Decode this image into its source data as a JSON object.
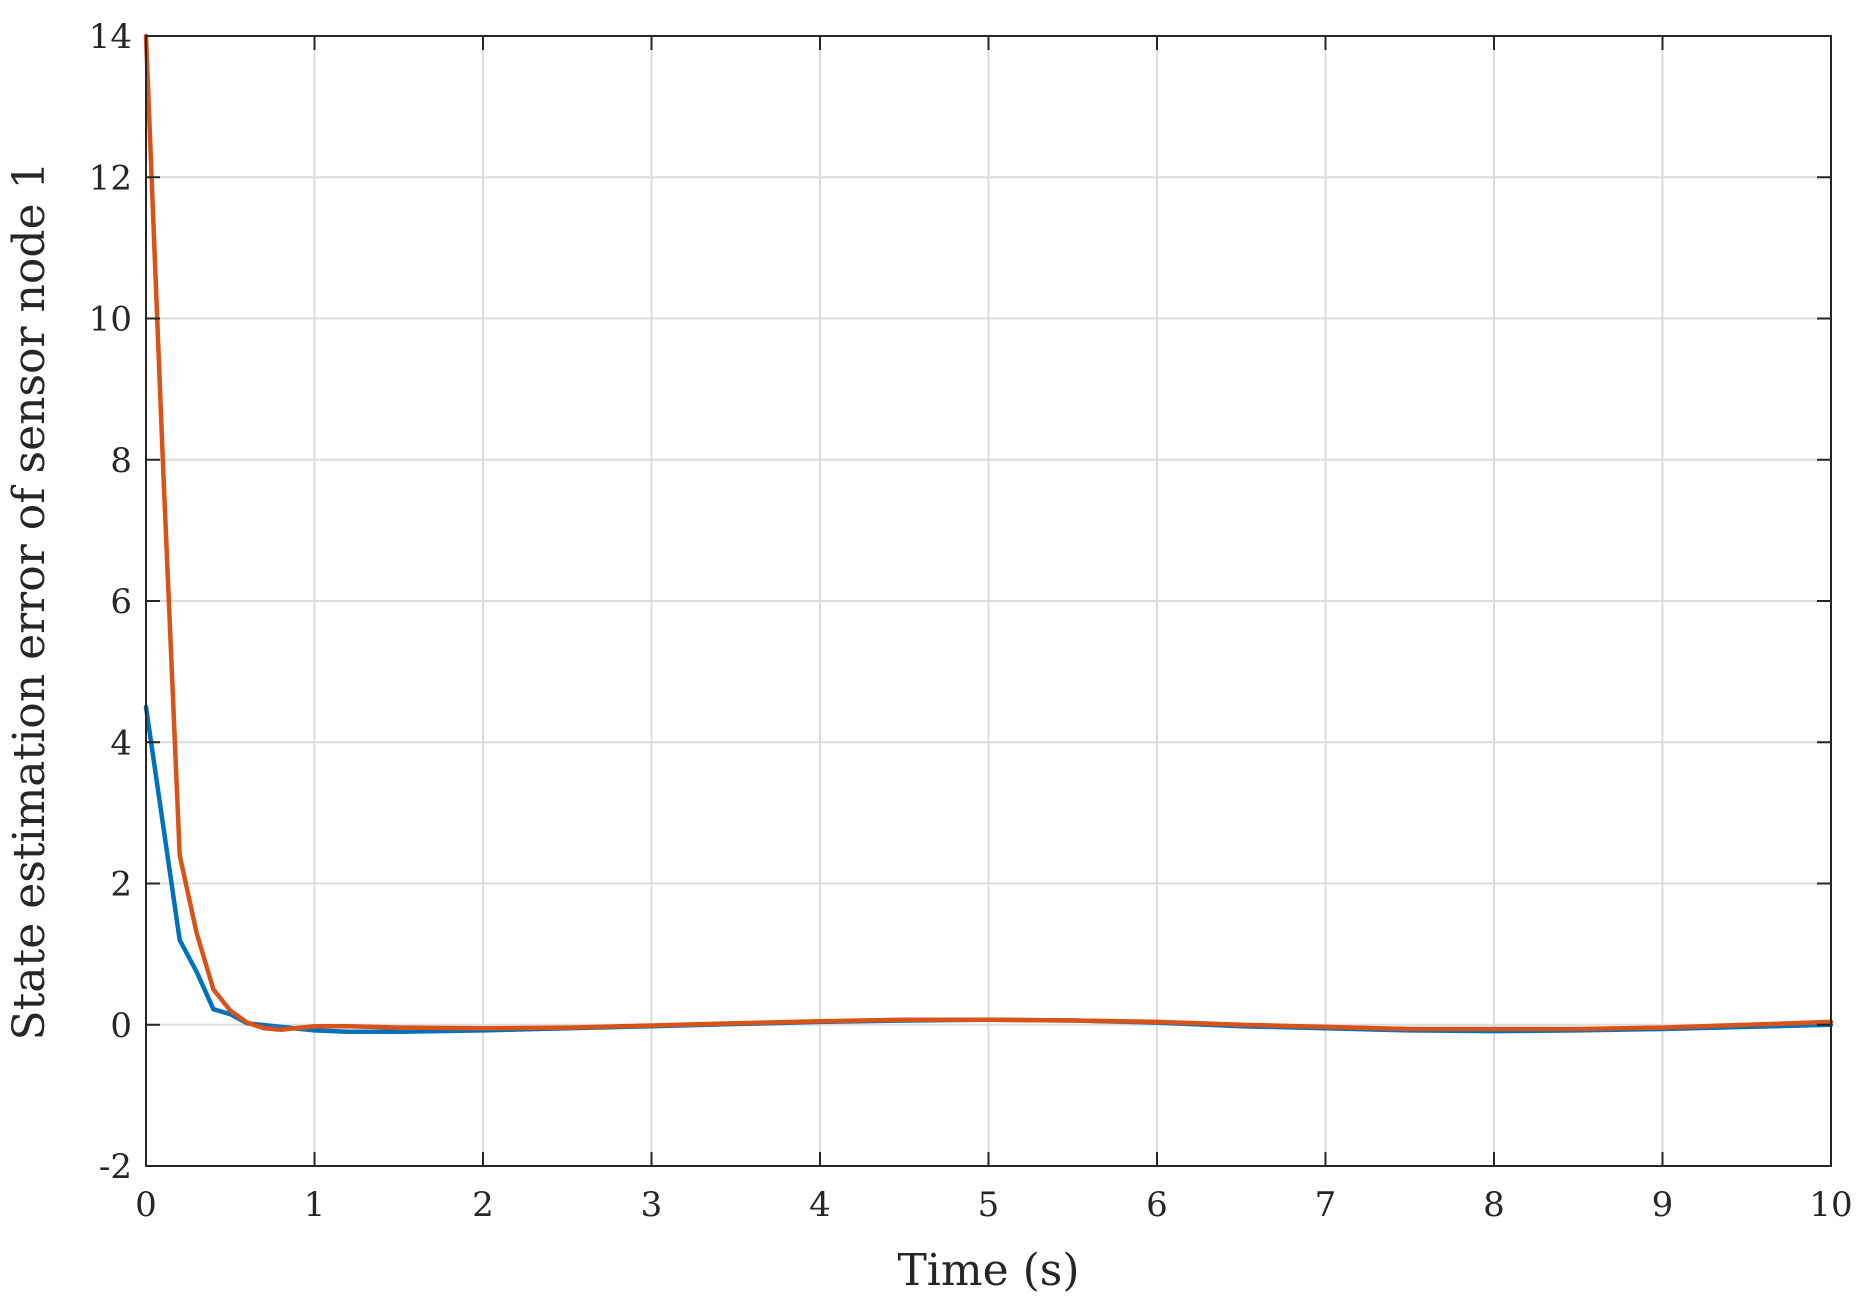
{
  "chart_data": {
    "type": "line",
    "title": "",
    "xlabel": "Time (s)",
    "ylabel": "State estimation error of sensor node 1",
    "xlim": [
      0,
      10
    ],
    "ylim": [
      -2,
      14
    ],
    "xticks": [
      0,
      1,
      2,
      3,
      4,
      5,
      6,
      7,
      8,
      9,
      10
    ],
    "yticks": [
      -2,
      0,
      2,
      4,
      6,
      8,
      10,
      12,
      14
    ],
    "grid": true,
    "legend": "none",
    "series": [
      {
        "color": "#0072BD",
        "x": [
          0,
          0.2,
          0.3,
          0.4,
          0.5,
          0.6,
          0.8,
          1.0,
          1.2,
          1.5,
          2.0,
          2.5,
          3.0,
          3.5,
          4.0,
          4.5,
          5.0,
          5.5,
          6.0,
          6.5,
          7.0,
          7.5,
          8.0,
          8.5,
          9.0,
          9.5,
          10.0
        ],
        "y": [
          4.5,
          1.2,
          0.75,
          0.22,
          0.15,
          0.02,
          -0.03,
          -0.08,
          -0.1,
          -0.1,
          -0.08,
          -0.05,
          -0.02,
          0.01,
          0.04,
          0.06,
          0.07,
          0.06,
          0.03,
          -0.02,
          -0.05,
          -0.08,
          -0.09,
          -0.08,
          -0.06,
          -0.03,
          0.0
        ]
      },
      {
        "color": "#D95319",
        "x": [
          0,
          0.1,
          0.2,
          0.3,
          0.4,
          0.5,
          0.6,
          0.7,
          0.8,
          1.0,
          1.2,
          1.5,
          2.0,
          2.5,
          3.0,
          3.5,
          4.0,
          4.5,
          5.0,
          5.5,
          6.0,
          6.5,
          7.0,
          7.5,
          8.0,
          8.5,
          9.0,
          9.5,
          10.0
        ],
        "y": [
          14.0,
          8.0,
          2.4,
          1.3,
          0.5,
          0.2,
          0.03,
          -0.05,
          -0.07,
          -0.02,
          -0.02,
          -0.04,
          -0.05,
          -0.04,
          -0.01,
          0.02,
          0.05,
          0.07,
          0.07,
          0.06,
          0.04,
          0.0,
          -0.03,
          -0.06,
          -0.06,
          -0.06,
          -0.04,
          0.0,
          0.04
        ]
      }
    ]
  }
}
